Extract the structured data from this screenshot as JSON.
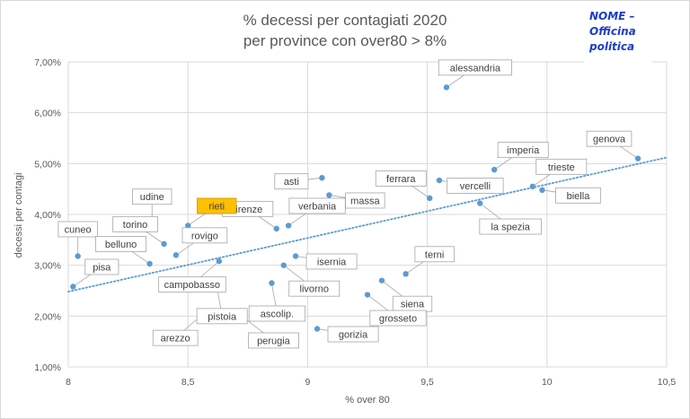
{
  "chart_data": {
    "type": "scatter",
    "title_line1": "% decessi per contagiati 2020",
    "title_line2": "per province con over80 > 8%",
    "xlabel": "% over 80",
    "ylabel": "decessi per contagi",
    "xlim": [
      8,
      10.5
    ],
    "ylim": [
      1.0,
      7.0
    ],
    "x_ticks": [
      8,
      8.5,
      9,
      9.5,
      10,
      10.5
    ],
    "x_tick_labels": [
      "8",
      "8,5",
      "9",
      "9,5",
      "10",
      "10,5"
    ],
    "y_ticks": [
      1,
      2,
      3,
      4,
      5,
      6,
      7
    ],
    "y_tick_labels": [
      "1,00%",
      "2,00%",
      "3,00%",
      "4,00%",
      "5,00%",
      "6,00%",
      "7,00%"
    ],
    "gridlines": true,
    "trendline": {
      "type": "linear",
      "x": [
        8,
        10.5
      ],
      "y": [
        2.48,
        5.12
      ],
      "style": "dotted"
    },
    "points": [
      {
        "name": "alessandria",
        "x": 9.58,
        "y": 6.5,
        "label_dir": "ne"
      },
      {
        "name": "genova",
        "x": 10.38,
        "y": 5.1,
        "label_dir": "nw"
      },
      {
        "name": "imperia",
        "x": 9.78,
        "y": 4.88,
        "label_dir": "ne"
      },
      {
        "name": "trieste",
        "x": 9.94,
        "y": 4.55,
        "label_dir": "ne"
      },
      {
        "name": "biella",
        "x": 9.98,
        "y": 4.48,
        "label_dir": "e"
      },
      {
        "name": "ferrara",
        "x": 9.51,
        "y": 4.32,
        "label_dir": "nw"
      },
      {
        "name": "vercelli",
        "x": 9.55,
        "y": 4.67,
        "label_dir": "e"
      },
      {
        "name": "la spezia",
        "x": 9.72,
        "y": 4.22,
        "label_dir": "se"
      },
      {
        "name": "asti",
        "x": 9.06,
        "y": 4.72,
        "label_dir": "w"
      },
      {
        "name": "massa",
        "x": 9.09,
        "y": 4.38,
        "label_dir": "e"
      },
      {
        "name": "firenze",
        "x": 8.87,
        "y": 3.72,
        "label_dir": "nw"
      },
      {
        "name": "verbania",
        "x": 8.92,
        "y": 3.78,
        "label_dir": "ne"
      },
      {
        "name": "udine",
        "x": 8.35,
        "y": 3.82,
        "label_dir": "n"
      },
      {
        "name": "rieti",
        "x": 8.5,
        "y": 3.78,
        "label_dir": "ne",
        "highlight": true
      },
      {
        "name": "cuneo",
        "x": 8.04,
        "y": 3.18,
        "label_dir": "n"
      },
      {
        "name": "torino",
        "x": 8.4,
        "y": 3.42,
        "label_dir": "nw"
      },
      {
        "name": "rovigo",
        "x": 8.45,
        "y": 3.2,
        "label_dir": "ne"
      },
      {
        "name": "belluno",
        "x": 8.34,
        "y": 3.03,
        "label_dir": "nw"
      },
      {
        "name": "campobasso",
        "x": 8.63,
        "y": 3.08,
        "label_dir": "sw"
      },
      {
        "name": "pisa",
        "x": 8.02,
        "y": 2.58,
        "label_dir": "ne"
      },
      {
        "name": "isernia",
        "x": 8.95,
        "y": 3.18,
        "label_dir": "e"
      },
      {
        "name": "livorno",
        "x": 8.9,
        "y": 3.0,
        "label_dir": "se"
      },
      {
        "name": "terni",
        "x": 9.41,
        "y": 2.83,
        "label_dir": "ne"
      },
      {
        "name": "pistoia",
        "x": 8.62,
        "y": 2.6,
        "label_dir": "s"
      },
      {
        "name": "ascolip.",
        "x": 8.85,
        "y": 2.65,
        "label_dir": "s"
      },
      {
        "name": "siena",
        "x": 9.31,
        "y": 2.7,
        "label_dir": "se"
      },
      {
        "name": "grosseto",
        "x": 9.25,
        "y": 2.42,
        "label_dir": "se"
      },
      {
        "name": "arezzo",
        "x": 8.56,
        "y": 2.03,
        "label_dir": "sw"
      },
      {
        "name": "perugia",
        "x": 8.73,
        "y": 1.98,
        "label_dir": "se"
      },
      {
        "name": "gorizia",
        "x": 9.04,
        "y": 1.75,
        "label_dir": "e"
      }
    ]
  },
  "watermark": {
    "text": "NOME – Officina politica",
    "color": "#1a3ccc"
  },
  "colors": {
    "point": "#5b9bd5",
    "trend": "#5b9bd5",
    "grid": "#d9d9d9",
    "axis_text": "#595959",
    "label_border": "#a6a6a6",
    "highlight_fill": "#ffc000"
  }
}
